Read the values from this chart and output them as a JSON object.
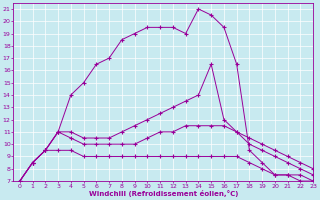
{
  "xlabel": "Windchill (Refroidissement éolien,°C)",
  "bg_color": "#c8eaf0",
  "line_color": "#990099",
  "xlim": [
    -0.5,
    23
  ],
  "ylim": [
    7,
    21.5
  ],
  "xticks": [
    0,
    1,
    2,
    3,
    4,
    5,
    6,
    7,
    8,
    9,
    10,
    11,
    12,
    13,
    14,
    15,
    16,
    17,
    18,
    19,
    20,
    21,
    22,
    23
  ],
  "yticks": [
    7,
    8,
    9,
    10,
    11,
    12,
    13,
    14,
    15,
    16,
    17,
    18,
    19,
    20,
    21
  ],
  "series": [
    {
      "x": [
        0,
        1,
        2,
        3,
        4,
        5,
        6,
        7,
        8,
        9,
        10,
        11,
        12,
        13,
        14,
        15,
        16,
        17,
        18,
        19,
        20,
        21,
        22,
        23
      ],
      "y": [
        7.0,
        8.5,
        9.5,
        11.0,
        14.0,
        15.0,
        16.5,
        17.0,
        18.5,
        19.0,
        19.5,
        19.5,
        19.5,
        19.0,
        21.0,
        20.5,
        19.5,
        16.5,
        9.5,
        8.5,
        7.5,
        7.5,
        7.0,
        7.0
      ]
    },
    {
      "x": [
        0,
        1,
        2,
        3,
        4,
        5,
        6,
        7,
        8,
        9,
        10,
        11,
        12,
        13,
        14,
        15,
        16,
        17,
        18,
        19,
        20,
        21,
        22,
        23
      ],
      "y": [
        7.0,
        8.5,
        9.5,
        11.0,
        11.0,
        10.5,
        10.5,
        10.5,
        11.0,
        11.5,
        12.0,
        12.5,
        13.0,
        13.5,
        14.0,
        16.5,
        12.0,
        11.0,
        10.0,
        9.5,
        9.0,
        8.5,
        8.0,
        7.5
      ]
    },
    {
      "x": [
        0,
        1,
        2,
        3,
        4,
        5,
        6,
        7,
        8,
        9,
        10,
        11,
        12,
        13,
        14,
        15,
        16,
        17,
        18,
        19,
        20,
        21,
        22,
        23
      ],
      "y": [
        7.0,
        8.5,
        9.5,
        11.0,
        10.5,
        10.0,
        10.0,
        10.0,
        10.0,
        10.0,
        10.5,
        11.0,
        11.0,
        11.5,
        11.5,
        11.5,
        11.5,
        11.0,
        10.5,
        10.0,
        9.5,
        9.0,
        8.5,
        8.0
      ]
    },
    {
      "x": [
        0,
        1,
        2,
        3,
        4,
        5,
        6,
        7,
        8,
        9,
        10,
        11,
        12,
        13,
        14,
        15,
        16,
        17,
        18,
        19,
        20,
        21,
        22,
        23
      ],
      "y": [
        7.0,
        8.5,
        9.5,
        9.5,
        9.5,
        9.0,
        9.0,
        9.0,
        9.0,
        9.0,
        9.0,
        9.0,
        9.0,
        9.0,
        9.0,
        9.0,
        9.0,
        9.0,
        8.5,
        8.0,
        7.5,
        7.5,
        7.5,
        7.0
      ]
    }
  ]
}
